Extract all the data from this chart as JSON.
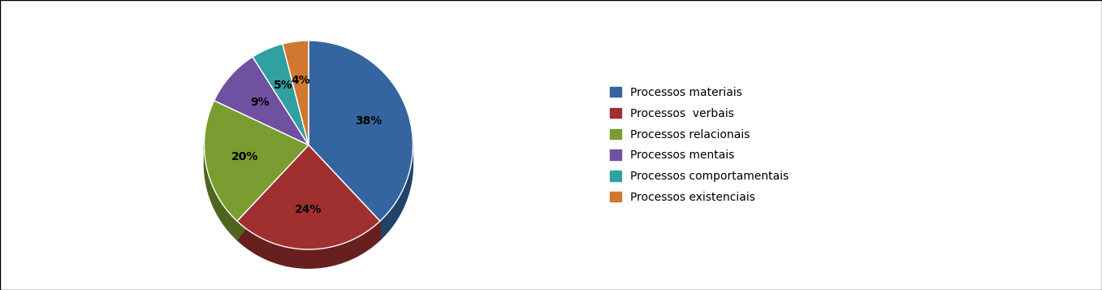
{
  "labels": [
    "Processos materiais",
    "Processos  verbais",
    "Processos relacionais",
    "Processos mentais",
    "Processos comportamentais",
    "Processos existenciais"
  ],
  "values": [
    38,
    24,
    20,
    9,
    5,
    4
  ],
  "colors": [
    "#3565A0",
    "#A03030",
    "#7A9C30",
    "#7050A0",
    "#30A0A0",
    "#D07830"
  ],
  "pct_labels": [
    "38%",
    "24%",
    "20%",
    "9%",
    "5%",
    "4%"
  ],
  "legend_labels": [
    "Processos materiais",
    "Processos  verbais",
    "Processos relacionais",
    "Processos mentais",
    "Processos comportamentais",
    "Processos existenciais"
  ],
  "background_color": "#ffffff",
  "figsize": [
    13.57,
    3.57
  ],
  "dpi": 100
}
